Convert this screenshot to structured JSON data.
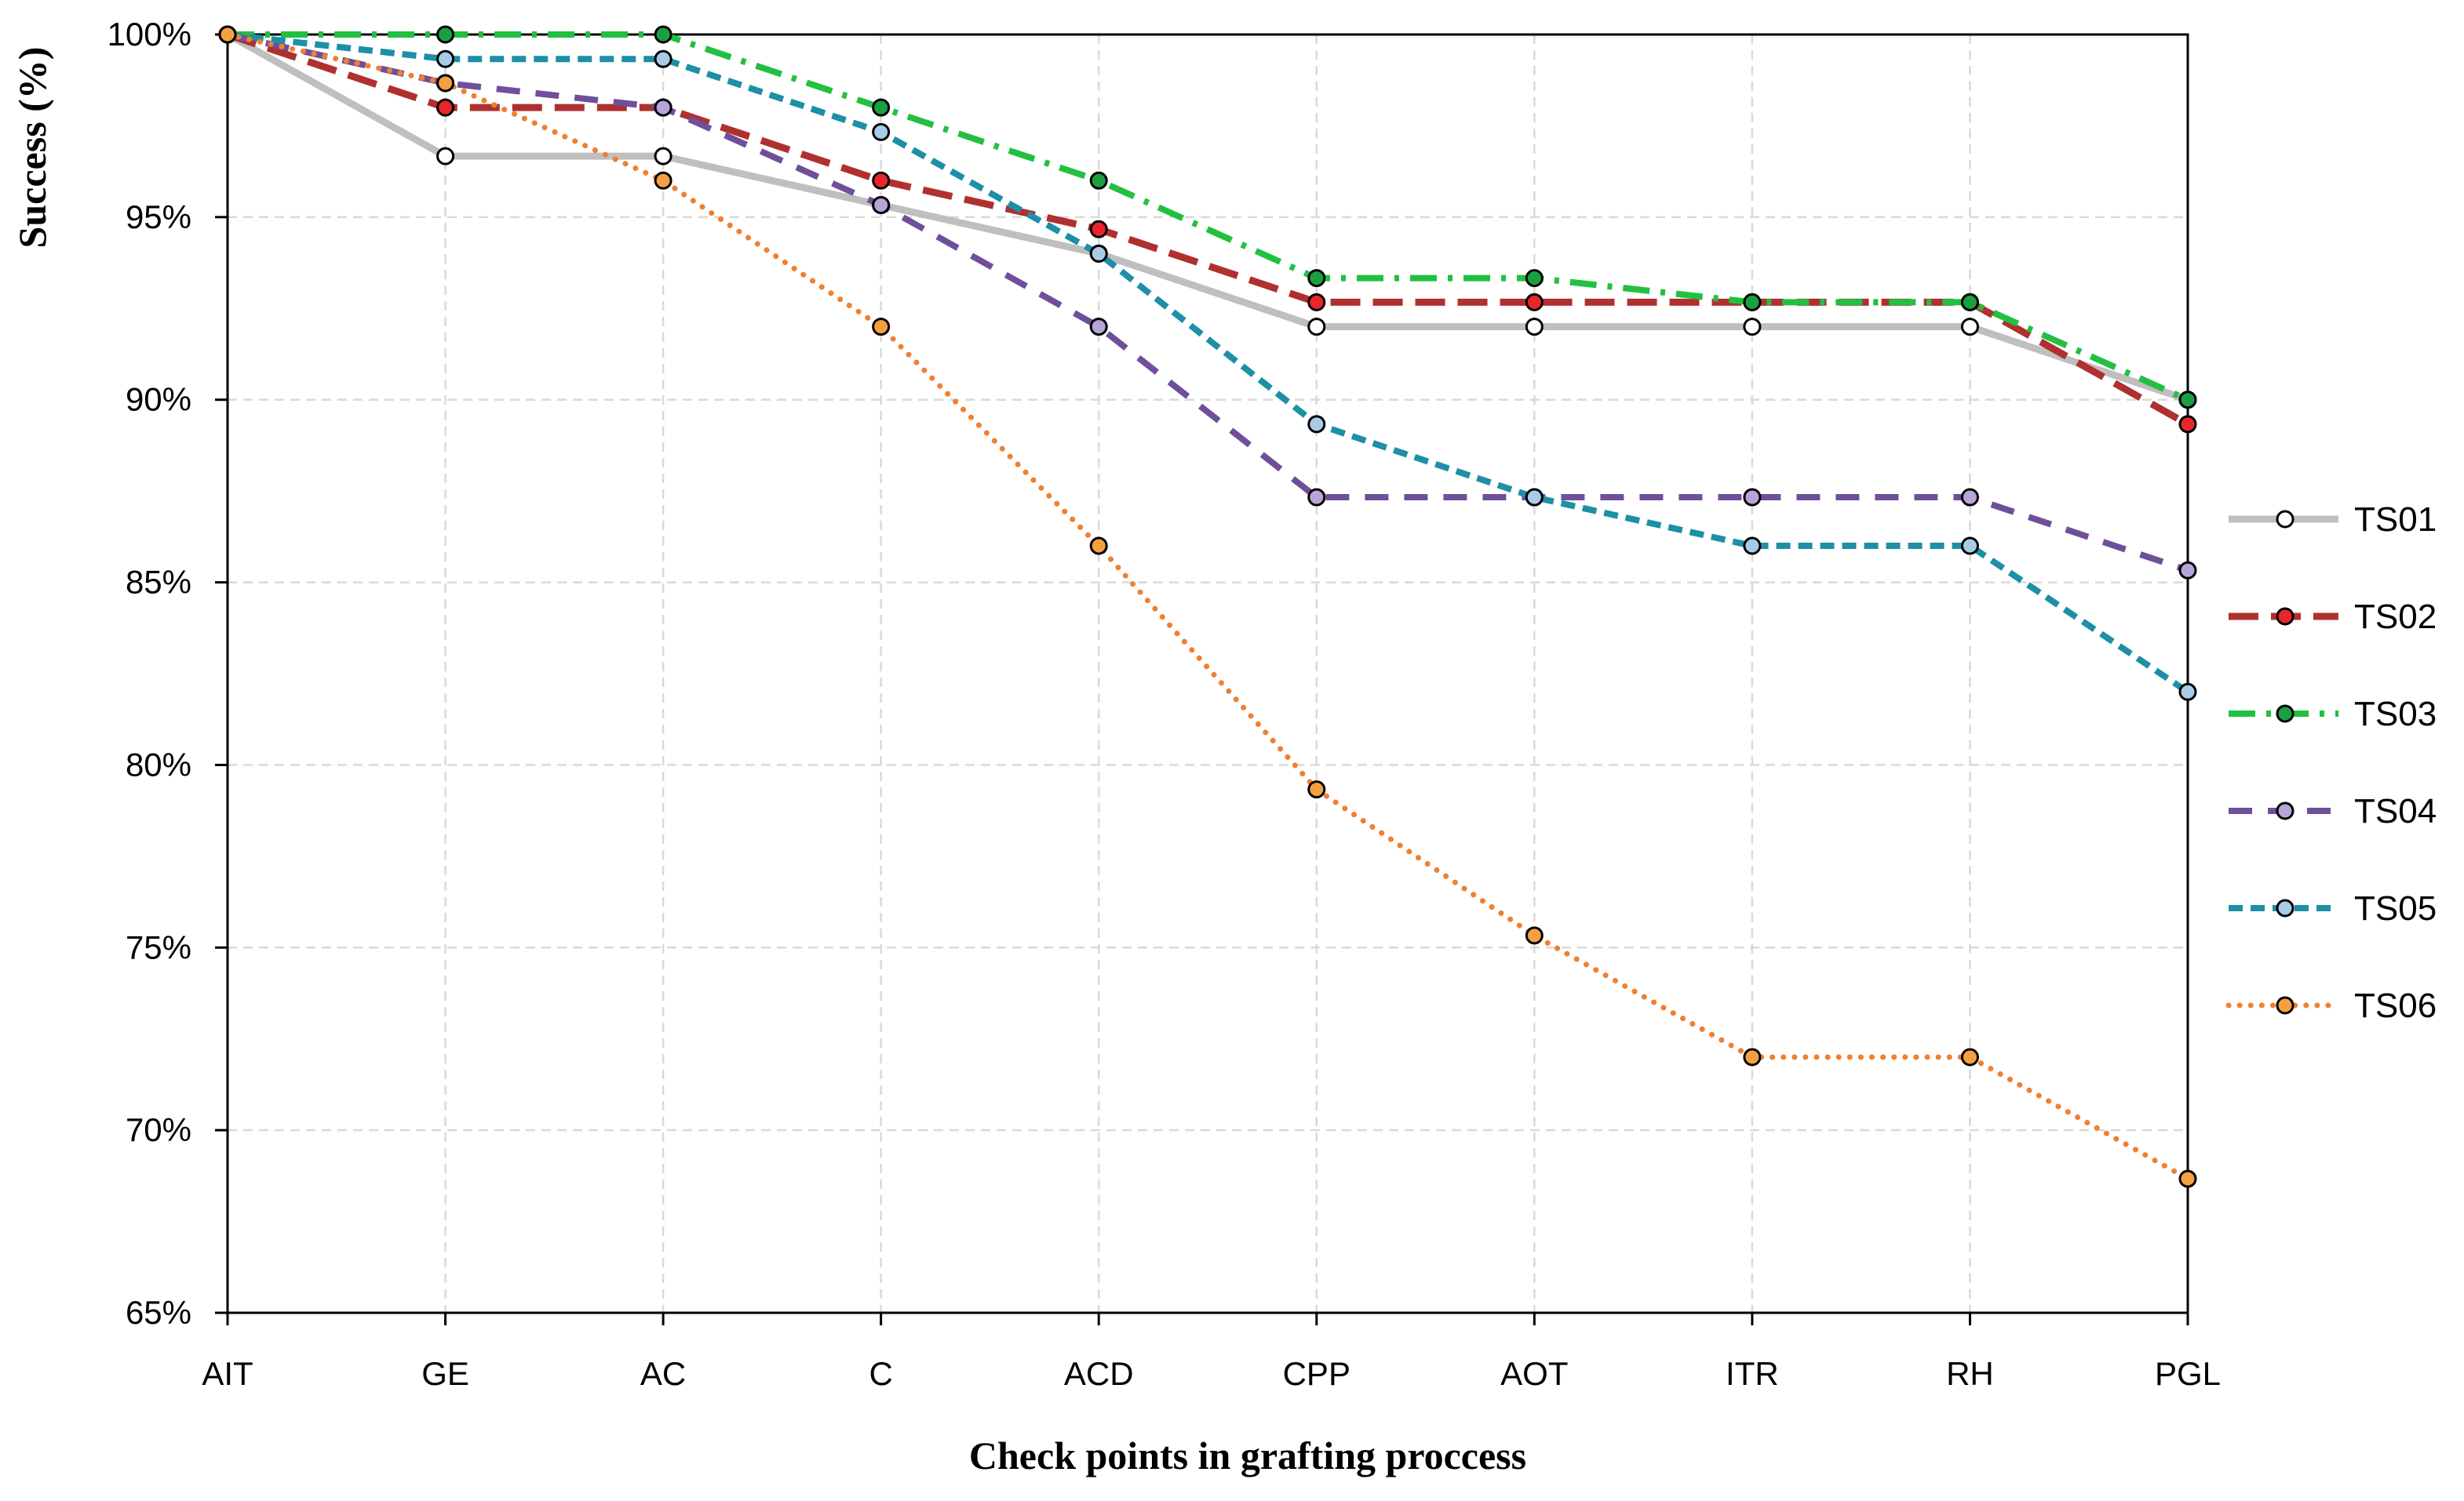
{
  "chart_data": {
    "type": "line",
    "title": "",
    "xlabel": "Check points in grafting proccess",
    "ylabel": "Success (%)",
    "ylim": [
      65,
      100
    ],
    "yticks": [
      65,
      70,
      75,
      80,
      85,
      90,
      95,
      100
    ],
    "ytick_labels": [
      "65%",
      "70%",
      "75%",
      "80%",
      "85%",
      "90%",
      "95%",
      "100%"
    ],
    "grid": true,
    "legend_position": "right",
    "categories": [
      "AIT",
      "GE",
      "AC",
      "C",
      "ACD",
      "CPP",
      "AOT",
      "ITR",
      "RH",
      "PGL"
    ],
    "series": [
      {
        "name": "TS01",
        "color": "#bfbfbf",
        "marker_fill": "#ffffff",
        "line_style": "solid",
        "values": [
          100,
          96.67,
          96.67,
          95.33,
          94.0,
          92.0,
          92.0,
          92.0,
          92.0,
          90.0
        ]
      },
      {
        "name": "TS02",
        "color": "#b03030",
        "marker_fill": "#e8262a",
        "line_style": "long-dash",
        "values": [
          100,
          98.0,
          98.0,
          96.0,
          94.67,
          92.67,
          92.67,
          92.67,
          92.67,
          89.33
        ]
      },
      {
        "name": "TS03",
        "color": "#22c040",
        "marker_fill": "#1aa040",
        "line_style": "dash-dot",
        "values": [
          100,
          100,
          100,
          98.0,
          96.0,
          93.33,
          93.33,
          92.67,
          92.67,
          90.0
        ]
      },
      {
        "name": "TS04",
        "color": "#6f4f9a",
        "marker_fill": "#b8a4d8",
        "line_style": "dash",
        "values": [
          100,
          98.67,
          98.0,
          95.33,
          92.0,
          87.33,
          87.33,
          87.33,
          87.33,
          85.33
        ]
      },
      {
        "name": "TS05",
        "color": "#1d8fa6",
        "marker_fill": "#a8cce8",
        "line_style": "short-dash",
        "values": [
          100,
          99.33,
          99.33,
          97.33,
          94.0,
          89.33,
          87.33,
          86.0,
          86.0,
          82.0
        ]
      },
      {
        "name": "TS06",
        "color": "#f08030",
        "marker_fill": "#f5a040",
        "line_style": "dotted",
        "values": [
          100,
          98.67,
          96.0,
          92.0,
          86.0,
          79.33,
          75.33,
          72.0,
          72.0,
          68.67
        ]
      }
    ]
  }
}
